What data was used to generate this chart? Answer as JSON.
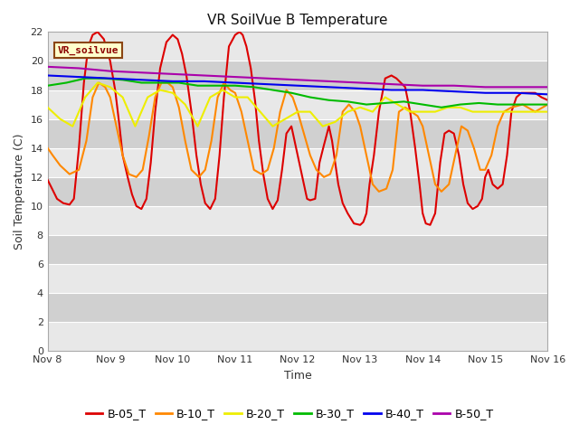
{
  "title": "VR SoilVue B Temperature",
  "xlabel": "Time",
  "ylabel": "Soil Temperature (C)",
  "ylim": [
    0,
    22
  ],
  "yticks": [
    0,
    2,
    4,
    6,
    8,
    10,
    12,
    14,
    16,
    18,
    20,
    22
  ],
  "x_tick_labels": [
    "Nov 8",
    "Nov 9",
    "Nov 10",
    "Nov 11",
    "Nov 12",
    "Nov 13",
    "Nov 14",
    "Nov 15",
    "Nov 16"
  ],
  "x_tick_positions": [
    0,
    1,
    2,
    3,
    4,
    5,
    6,
    7,
    8
  ],
  "annotation_box": "VR_soilvue",
  "legend_labels": [
    "B-05_T",
    "B-10_T",
    "B-20_T",
    "B-30_T",
    "B-40_T",
    "B-50_T"
  ],
  "line_colors": [
    "#dd0000",
    "#ff8800",
    "#eeee00",
    "#00bb00",
    "#0000ee",
    "#aa00aa"
  ],
  "fig_bg_color": "#ffffff",
  "plot_bg_color": "#d8d8d8",
  "band_color_light": "#e8e8e8",
  "band_color_dark": "#d0d0d0",
  "series": {
    "B-05_T": {
      "x": [
        0.0,
        0.07,
        0.15,
        0.25,
        0.35,
        0.42,
        0.5,
        0.58,
        0.65,
        0.72,
        0.8,
        0.9,
        1.0,
        1.08,
        1.15,
        1.2,
        1.28,
        1.35,
        1.42,
        1.5,
        1.58,
        1.65,
        1.72,
        1.8,
        1.9,
        2.0,
        2.08,
        2.15,
        2.22,
        2.3,
        2.38,
        2.45,
        2.52,
        2.6,
        2.68,
        2.75,
        2.82,
        2.9,
        3.0,
        3.07,
        3.12,
        3.18,
        3.25,
        3.32,
        3.38,
        3.45,
        3.52,
        3.6,
        3.68,
        3.75,
        3.82,
        3.9,
        3.95,
        4.0,
        4.05,
        4.1,
        4.15,
        4.2,
        4.28,
        4.35,
        4.42,
        4.5,
        4.55,
        4.6,
        4.65,
        4.72,
        4.8,
        4.9,
        5.0,
        5.05,
        5.1,
        5.15,
        5.22,
        5.3,
        5.4,
        5.5,
        5.58,
        5.65,
        5.72,
        5.8,
        5.88,
        5.95,
        6.0,
        6.05,
        6.12,
        6.2,
        6.28,
        6.35,
        6.42,
        6.5,
        6.58,
        6.65,
        6.72,
        6.8,
        6.88,
        6.95,
        7.0,
        7.05,
        7.12,
        7.2,
        7.28,
        7.35,
        7.42,
        7.5,
        7.58,
        7.65,
        7.72,
        7.8,
        7.9,
        8.0
      ],
      "y": [
        11.8,
        11.2,
        10.5,
        10.2,
        10.1,
        10.5,
        14.0,
        18.5,
        21.0,
        21.8,
        22.0,
        21.5,
        20.0,
        18.0,
        15.5,
        13.5,
        12.0,
        10.8,
        10.0,
        9.8,
        10.5,
        13.0,
        16.5,
        19.5,
        21.3,
        21.8,
        21.5,
        20.5,
        19.0,
        16.5,
        13.5,
        11.5,
        10.2,
        9.8,
        10.5,
        13.5,
        17.5,
        21.0,
        21.8,
        22.0,
        21.8,
        21.0,
        19.5,
        17.2,
        14.5,
        12.2,
        10.5,
        9.8,
        10.4,
        12.5,
        15.0,
        15.5,
        14.5,
        13.5,
        12.5,
        11.5,
        10.5,
        10.4,
        10.5,
        13.0,
        14.2,
        15.5,
        14.5,
        13.0,
        11.5,
        10.2,
        9.5,
        8.8,
        8.7,
        8.9,
        9.5,
        11.5,
        13.5,
        16.5,
        18.8,
        19.0,
        18.8,
        18.5,
        18.2,
        16.5,
        14.0,
        11.5,
        9.5,
        8.8,
        8.7,
        9.5,
        13.0,
        15.0,
        15.2,
        15.0,
        13.5,
        11.5,
        10.2,
        9.8,
        10.0,
        10.5,
        12.0,
        12.5,
        11.5,
        11.2,
        11.5,
        13.5,
        16.5,
        17.5,
        17.8,
        17.8,
        17.8,
        17.8,
        17.5,
        17.3
      ]
    },
    "B-10_T": {
      "x": [
        0.0,
        0.08,
        0.2,
        0.35,
        0.5,
        0.62,
        0.72,
        0.82,
        0.92,
        1.0,
        1.1,
        1.2,
        1.3,
        1.42,
        1.52,
        1.62,
        1.72,
        1.82,
        1.92,
        2.0,
        2.1,
        2.2,
        2.3,
        2.42,
        2.52,
        2.62,
        2.72,
        2.82,
        2.92,
        3.0,
        3.1,
        3.2,
        3.3,
        3.42,
        3.52,
        3.62,
        3.72,
        3.82,
        3.92,
        4.0,
        4.1,
        4.2,
        4.3,
        4.42,
        4.52,
        4.62,
        4.72,
        4.82,
        4.92,
        5.0,
        5.1,
        5.2,
        5.3,
        5.42,
        5.52,
        5.62,
        5.72,
        5.82,
        5.92,
        6.0,
        6.1,
        6.2,
        6.3,
        6.42,
        6.52,
        6.62,
        6.72,
        6.82,
        6.92,
        7.0,
        7.1,
        7.2,
        7.3,
        7.42,
        7.6,
        7.8,
        8.0
      ],
      "y": [
        14.0,
        13.5,
        12.8,
        12.2,
        12.5,
        14.5,
        17.5,
        18.5,
        18.2,
        17.5,
        15.5,
        13.5,
        12.2,
        12.0,
        12.5,
        14.8,
        17.5,
        18.5,
        18.5,
        18.2,
        16.8,
        14.5,
        12.5,
        12.0,
        12.5,
        14.5,
        17.5,
        18.5,
        18.0,
        17.8,
        16.5,
        14.5,
        12.5,
        12.2,
        12.5,
        14.0,
        16.5,
        18.0,
        17.5,
        16.5,
        15.0,
        13.5,
        12.5,
        12.0,
        12.2,
        13.5,
        16.5,
        17.0,
        16.5,
        15.5,
        13.5,
        11.5,
        11.0,
        11.2,
        12.5,
        16.5,
        16.8,
        16.5,
        16.2,
        15.5,
        13.5,
        11.5,
        11.0,
        11.5,
        13.5,
        15.5,
        15.2,
        14.0,
        12.5,
        12.5,
        13.5,
        15.5,
        16.5,
        16.8,
        17.0,
        16.5,
        17.0
      ]
    },
    "B-20_T": {
      "x": [
        0.0,
        0.2,
        0.4,
        0.6,
        0.8,
        1.0,
        1.2,
        1.4,
        1.6,
        1.8,
        2.0,
        2.2,
        2.4,
        2.6,
        2.8,
        3.0,
        3.2,
        3.4,
        3.6,
        3.8,
        4.0,
        4.2,
        4.4,
        4.6,
        4.8,
        5.0,
        5.2,
        5.4,
        5.6,
        5.8,
        6.0,
        6.2,
        6.4,
        6.6,
        6.8,
        7.0,
        7.2,
        7.4,
        7.6,
        7.8,
        8.0
      ],
      "y": [
        16.8,
        16.0,
        15.5,
        17.5,
        18.5,
        18.2,
        17.5,
        15.5,
        17.5,
        18.0,
        17.8,
        17.0,
        15.5,
        17.5,
        18.0,
        17.5,
        17.5,
        16.5,
        15.5,
        16.0,
        16.5,
        16.5,
        15.5,
        15.8,
        16.5,
        16.8,
        16.5,
        17.5,
        17.0,
        16.5,
        16.5,
        16.5,
        16.8,
        16.8,
        16.5,
        16.5,
        16.5,
        16.5,
        16.5,
        16.5,
        16.5
      ]
    },
    "B-30_T": {
      "x": [
        0.0,
        0.3,
        0.6,
        0.9,
        1.2,
        1.5,
        1.8,
        2.1,
        2.4,
        2.7,
        3.0,
        3.3,
        3.6,
        3.9,
        4.2,
        4.5,
        4.8,
        5.1,
        5.4,
        5.7,
        6.0,
        6.3,
        6.6,
        6.9,
        7.2,
        7.5,
        7.8,
        8.0
      ],
      "y": [
        18.3,
        18.5,
        18.8,
        18.8,
        18.7,
        18.5,
        18.5,
        18.5,
        18.3,
        18.3,
        18.3,
        18.2,
        18.0,
        17.8,
        17.5,
        17.3,
        17.2,
        17.0,
        17.1,
        17.2,
        17.0,
        16.8,
        17.0,
        17.1,
        17.0,
        17.0,
        17.0,
        17.0
      ]
    },
    "B-40_T": {
      "x": [
        0.0,
        0.5,
        1.0,
        1.5,
        2.0,
        2.5,
        3.0,
        3.5,
        4.0,
        4.5,
        5.0,
        5.5,
        6.0,
        6.5,
        7.0,
        7.5,
        8.0
      ],
      "y": [
        19.0,
        18.9,
        18.8,
        18.7,
        18.6,
        18.6,
        18.5,
        18.4,
        18.3,
        18.2,
        18.1,
        18.0,
        18.0,
        17.9,
        17.8,
        17.8,
        17.7
      ]
    },
    "B-50_T": {
      "x": [
        0.0,
        0.5,
        1.0,
        1.5,
        2.0,
        2.5,
        3.0,
        3.5,
        4.0,
        4.5,
        5.0,
        5.5,
        6.0,
        6.5,
        7.0,
        7.5,
        8.0
      ],
      "y": [
        19.6,
        19.5,
        19.3,
        19.2,
        19.1,
        19.0,
        18.9,
        18.8,
        18.7,
        18.6,
        18.5,
        18.4,
        18.3,
        18.3,
        18.2,
        18.2,
        18.2
      ]
    }
  }
}
